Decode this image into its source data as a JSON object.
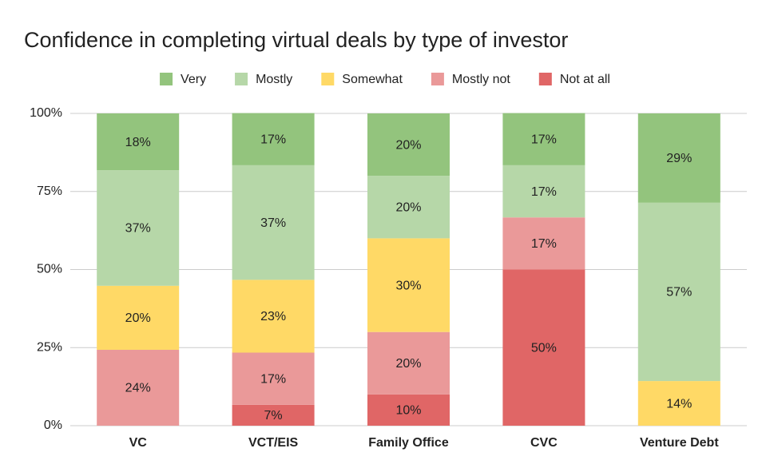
{
  "chart_data": {
    "type": "stacked_bar",
    "title": "Confidence in completing virtual deals by type of investor",
    "categories": [
      "VC",
      "VCT/EIS",
      "Family Office",
      "CVC",
      "Venture Debt"
    ],
    "series": [
      {
        "name": "Not at all",
        "color": "#e06666",
        "values": [
          null,
          6.7,
          10,
          50,
          null
        ],
        "value_labels": [
          null,
          "7%",
          "10%",
          "50%",
          null
        ]
      },
      {
        "name": "Mostly not",
        "color": "#ea9999",
        "values": [
          24.3,
          16.7,
          20,
          16.7,
          null
        ],
        "value_labels": [
          "24%",
          "17%",
          "20%",
          "17%",
          null
        ]
      },
      {
        "name": "Somewhat",
        "color": "#ffd966",
        "values": [
          20.5,
          23.3,
          30,
          null,
          14.3
        ],
        "value_labels": [
          "20%",
          "23%",
          "30%",
          null,
          "14%"
        ]
      },
      {
        "name": "Mostly",
        "color": "#b6d7a8",
        "values": [
          37,
          36.7,
          20,
          16.7,
          57.1
        ],
        "value_labels": [
          "37%",
          "37%",
          "20%",
          "17%",
          "57%"
        ]
      },
      {
        "name": "Very",
        "color": "#93c47d",
        "values": [
          18.2,
          16.7,
          20,
          16.7,
          28.6
        ],
        "value_labels": [
          "18%",
          "17%",
          "20%",
          "17%",
          "29%"
        ]
      }
    ],
    "legend_order": [
      "Very",
      "Mostly",
      "Somewhat",
      "Mostly not",
      "Not at all"
    ],
    "ylim": [
      0,
      100
    ],
    "yticks": [
      {
        "value": 0,
        "label": "0%"
      },
      {
        "value": 25,
        "label": "25%"
      },
      {
        "value": 50,
        "label": "50%"
      },
      {
        "value": 75,
        "label": "75%"
      },
      {
        "value": 100,
        "label": "100%"
      }
    ],
    "grid": true,
    "legend": "top"
  }
}
